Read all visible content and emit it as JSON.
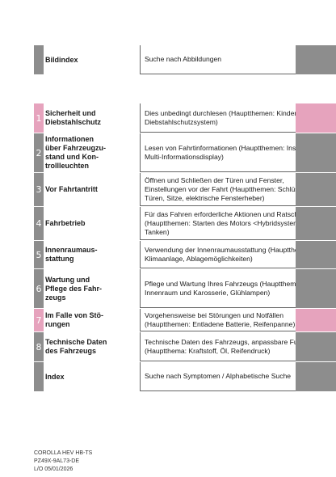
{
  "index_row": {
    "title": "Bildindex",
    "desc": "Suche nach Abbildungen"
  },
  "chapters": [
    {
      "num": "1",
      "title": "Sicherheit und\nDiebstahlschutz",
      "desc": "Dies unbedingt durchlesen (Hauptthemen: Kindersitz, Diebstahlschutzsystem)",
      "highlight": true
    },
    {
      "num": "2",
      "title": "Informationen\nüber Fahrzeugzu-\nstand und Kon-\ntrollleuchten",
      "desc": "Lesen von Fahrtinformationen (Hauptthemen: Instrumente, Multi-Informationsdisplay)",
      "highlight": false
    },
    {
      "num": "3",
      "title": "Vor Fahrtantritt",
      "desc": "Öffnen und Schließen der Türen und Fenster, Einstellungen vor der Fahrt (Hauptthemen: Schlüssel, Türen, Sitze, elektrische Fensterheber)",
      "highlight": false
    },
    {
      "num": "4",
      "title": "Fahrbetrieb",
      "desc": "Für das Fahren erforderliche Aktionen und Ratschläge (Hauptthemen: Starten des Motors <Hybridsystem>, Tanken)",
      "highlight": false
    },
    {
      "num": "5",
      "title": "Innenraumaus-\nstattung",
      "desc": "Verwendung der Innenraumausstattung (Hauptthemen: Klimaanlage, Ablagemöglichkeiten)",
      "highlight": false
    },
    {
      "num": "6",
      "title": "Wartung und\nPflege des Fahr-\nzeugs",
      "desc": "Pflege und Wartung Ihres Fahrzeugs (Hauptthemen: Innenraum und Karosserie, Glühlampen)",
      "highlight": false
    },
    {
      "num": "7",
      "title": "Im Falle von Stö-\nrungen",
      "desc": "Vorgehensweise bei Störungen und Notfällen (Hauptthemen: Entladene Batterie, Reifenpanne)",
      "highlight": true
    },
    {
      "num": "8",
      "title": "Technische Daten\ndes Fahrzeugs",
      "desc": "Technische Daten des Fahrzeugs, anpassbare Funktionen (Hauptthema: Kraftstoff, Öl, Reifendruck)",
      "highlight": false
    }
  ],
  "index_last": {
    "title": "Index",
    "desc": "Suche nach Symptomen / Alphabetische Suche"
  },
  "footer": {
    "line1": "COROLLA HEV HB-TS",
    "line2": "PZ49X-9AL73-DE",
    "line3": "L/O 05/01/2026"
  }
}
